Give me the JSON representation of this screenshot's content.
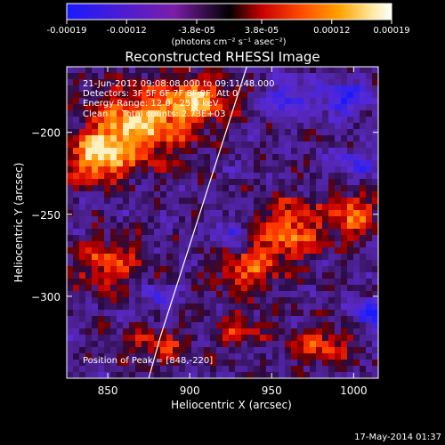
{
  "colorbar": {
    "tick_labels": [
      "-0.00019",
      "-0.00012",
      "-3.8e-05",
      "3.8e-05",
      "0.00012",
      "0.00019"
    ],
    "tick_values": [
      -0.00019,
      -0.00012,
      -3.8e-05,
      3.8e-05,
      0.00012,
      0.00019
    ],
    "range": [
      -0.00019,
      0.00019
    ],
    "units_label": "(photons cm⁻² s⁻¹ asec⁻²)",
    "colors": [
      "#1a1aff",
      "#7b1ea8",
      "#000000",
      "#c80000",
      "#ff4a00",
      "#ffa200",
      "#ffe9a0",
      "#ffffff"
    ]
  },
  "chart_data": {
    "type": "heatmap",
    "title": "Reconstructed RHESSI Image",
    "xlabel": "Heliocentric X (arcsec)",
    "ylabel": "Heliocentric Y (arcsec)",
    "xlim": [
      825,
      1015
    ],
    "ylim": [
      -350,
      -160
    ],
    "x_ticks": [
      850,
      900,
      950,
      1000
    ],
    "y_ticks": [
      -200,
      -250,
      -300
    ],
    "x_tick_labels": [
      "850",
      "900",
      "950",
      "1000"
    ],
    "y_tick_labels": [
      "−200",
      "−250",
      "−300"
    ],
    "annotations": [
      "21-Jun-2012 09:08:08.000 to 09:11:48.000",
      "Detectors: 3F 5F 6F 7F 8F 9F, Att 0",
      "Energy Range: 12.0 - 25.0 keV",
      "Clean     Total counts: 2.73E+03"
    ],
    "peak_label": "Position of Peak = [848,-220]",
    "peak_position": [
      848,
      -220
    ],
    "limb_curve_x": [
      875,
      882,
      890,
      898,
      906,
      914,
      922,
      930,
      938
    ],
    "limb_curve_y": [
      -350,
      -325,
      -300,
      -275,
      -250,
      -225,
      -200,
      -175,
      -150
    ],
    "limb_color": "#ffffff",
    "hot_regions": [
      {
        "x": 870,
        "y": -195,
        "rx": 28,
        "ry": 22,
        "level": 0.95
      },
      {
        "x": 845,
        "y": -215,
        "rx": 18,
        "ry": 16,
        "level": 0.9
      },
      {
        "x": 905,
        "y": -180,
        "rx": 20,
        "ry": 14,
        "level": 0.8
      },
      {
        "x": 960,
        "y": -260,
        "rx": 22,
        "ry": 18,
        "level": 0.75
      },
      {
        "x": 1000,
        "y": -250,
        "rx": 14,
        "ry": 14,
        "level": 0.7
      },
      {
        "x": 935,
        "y": -285,
        "rx": 20,
        "ry": 14,
        "level": 0.6
      },
      {
        "x": 850,
        "y": -280,
        "rx": 22,
        "ry": 16,
        "level": 0.6
      },
      {
        "x": 980,
        "y": -330,
        "rx": 20,
        "ry": 12,
        "level": 0.55
      },
      {
        "x": 880,
        "y": -330,
        "rx": 18,
        "ry": 12,
        "level": 0.45
      },
      {
        "x": 930,
        "y": -320,
        "rx": 14,
        "ry": 12,
        "level": 0.5
      }
    ],
    "cold_regions": [
      {
        "x": 995,
        "y": -180,
        "rx": 14,
        "ry": 10,
        "level": -0.7
      },
      {
        "x": 960,
        "y": -180,
        "rx": 14,
        "ry": 10,
        "level": -0.6
      },
      {
        "x": 1010,
        "y": -310,
        "rx": 8,
        "ry": 8,
        "level": -1.0
      },
      {
        "x": 925,
        "y": -260,
        "rx": 8,
        "ry": 10,
        "level": -0.55
      },
      {
        "x": 880,
        "y": -300,
        "rx": 10,
        "ry": 8,
        "level": -0.5
      },
      {
        "x": 1000,
        "y": -220,
        "rx": 14,
        "ry": 10,
        "level": -0.45
      }
    ]
  },
  "footer": {
    "date": "17-May-2014 01:37"
  }
}
